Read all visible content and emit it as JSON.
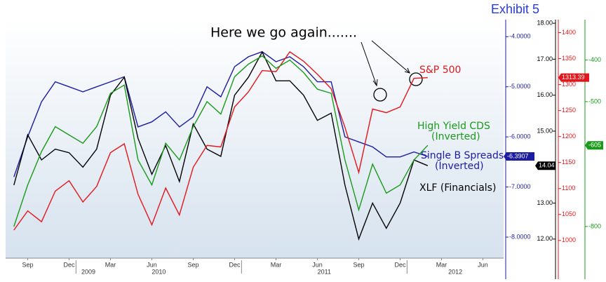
{
  "chart_data": {
    "type": "line",
    "title": "Exhibit 5",
    "annotation": "Here we go again.......",
    "x": [
      "2009-08",
      "2009-09",
      "2009-10",
      "2009-11",
      "2009-12",
      "2010-01",
      "2010-02",
      "2010-03",
      "2010-04",
      "2010-05",
      "2010-06",
      "2010-07",
      "2010-08",
      "2010-09",
      "2010-10",
      "2010-11",
      "2010-12",
      "2011-01",
      "2011-02",
      "2011-03",
      "2011-04",
      "2011-05",
      "2011-06",
      "2011-07",
      "2011-08",
      "2011-09",
      "2011-10",
      "2011-11",
      "2011-12",
      "2012-01",
      "2012-02"
    ],
    "xlim": [
      "2009-08",
      "2012-08"
    ],
    "xticks": [
      {
        "value": "2009-09",
        "label": "Sep"
      },
      {
        "value": "2009-12",
        "label": "Dec"
      },
      {
        "value": "2010-03",
        "label": "Mar"
      },
      {
        "value": "2010-06",
        "label": "Jun"
      },
      {
        "value": "2010-09",
        "label": "Sep"
      },
      {
        "value": "2010-12",
        "label": "Dec"
      },
      {
        "value": "2011-03",
        "label": "Mar"
      },
      {
        "value": "2011-06",
        "label": "Jun"
      },
      {
        "value": "2011-09",
        "label": "Sep"
      },
      {
        "value": "2011-12",
        "label": "Dec"
      },
      {
        "value": "2012-03",
        "label": "Mar"
      },
      {
        "value": "2012-06",
        "label": "Jun"
      }
    ],
    "years": [
      "2009",
      "2010",
      "2011",
      "2012"
    ],
    "y_axes": [
      {
        "color": "#1c1ca0",
        "ylim": [
          -8.42,
          -3.66
        ],
        "yticks": [
          {
            "value": -4,
            "label": "-4.0000"
          },
          {
            "value": -5,
            "label": "-5.0000"
          },
          {
            "value": -6,
            "label": "-6.0000"
          },
          {
            "value": -7,
            "label": "-7.0000"
          },
          {
            "value": -8,
            "label": "-8.0000"
          }
        ]
      },
      {
        "color": "#000000",
        "ylim": [
          11.47,
          18.1
        ],
        "yticks": [
          {
            "value": 18,
            "label": "18.00"
          },
          {
            "value": 17,
            "label": "17.00"
          },
          {
            "value": 16,
            "label": "16.00"
          },
          {
            "value": 15,
            "label": "15.00"
          },
          {
            "value": 13,
            "label": "13.00"
          },
          {
            "value": 12,
            "label": "12.00"
          }
        ]
      },
      {
        "color": "#e3161b",
        "ylim": [
          966,
          1425
        ],
        "yticks": [
          1400,
          1350,
          1300,
          1250,
          1200,
          1150,
          1100,
          1050,
          1000
        ]
      },
      {
        "color": "#1a9a1a",
        "ylim": [
          -876,
          -303
        ],
        "yticks": [
          -400,
          -500,
          -800
        ]
      }
    ],
    "series": [
      {
        "name": "Single B Spreads",
        "qualifier": "(Inverted)",
        "color": "#1c1ca0",
        "axis": 0,
        "values": [
          -6.8,
          -6.0,
          -5.3,
          -4.9,
          -5.0,
          -5.1,
          -5.0,
          -4.9,
          -4.8,
          -5.8,
          -5.7,
          -5.5,
          -5.8,
          -5.6,
          -5.0,
          -5.2,
          -4.6,
          -4.4,
          -4.3,
          -4.5,
          -4.4,
          -4.6,
          -4.9,
          -4.9,
          -6.0,
          -6.1,
          -6.2,
          -6.4,
          -6.4,
          -6.3,
          -6.3907
        ]
      },
      {
        "name": "XLF (Financials)",
        "color": "#000000",
        "axis": 1,
        "values": [
          13.5,
          14.9,
          14.2,
          14.5,
          14.4,
          14.0,
          14.5,
          16.0,
          16.5,
          14.8,
          13.8,
          14.6,
          13.6,
          15.2,
          14.5,
          14.3,
          16.0,
          16.5,
          17.2,
          16.4,
          16.4,
          16.0,
          15.3,
          15.5,
          13.5,
          12.0,
          13.0,
          12.3,
          13.0,
          14.2,
          14.04
        ]
      },
      {
        "name": "S&P 500",
        "color": "#e3161b",
        "axis": 2,
        "values": [
          1020,
          1057,
          1036,
          1095,
          1115,
          1074,
          1104,
          1169,
          1186,
          1089,
          1030,
          1101,
          1049,
          1141,
          1183,
          1180,
          1257,
          1286,
          1327,
          1325,
          1363,
          1345,
          1320,
          1292,
          1218,
          1131,
          1253,
          1246,
          1257,
          1312,
          1313.39
        ]
      },
      {
        "name": "High Yield CDS",
        "qualifier": "(Inverted)",
        "color": "#1a9a1a",
        "axis": 3,
        "values": [
          -800,
          -700,
          -620,
          -560,
          -580,
          -600,
          -560,
          -480,
          -460,
          -640,
          -700,
          -600,
          -640,
          -560,
          -500,
          -530,
          -440,
          -410,
          -390,
          -420,
          -400,
          -430,
          -470,
          -480,
          -640,
          -760,
          -650,
          -720,
          -700,
          -640,
          -605
        ]
      }
    ]
  }
}
